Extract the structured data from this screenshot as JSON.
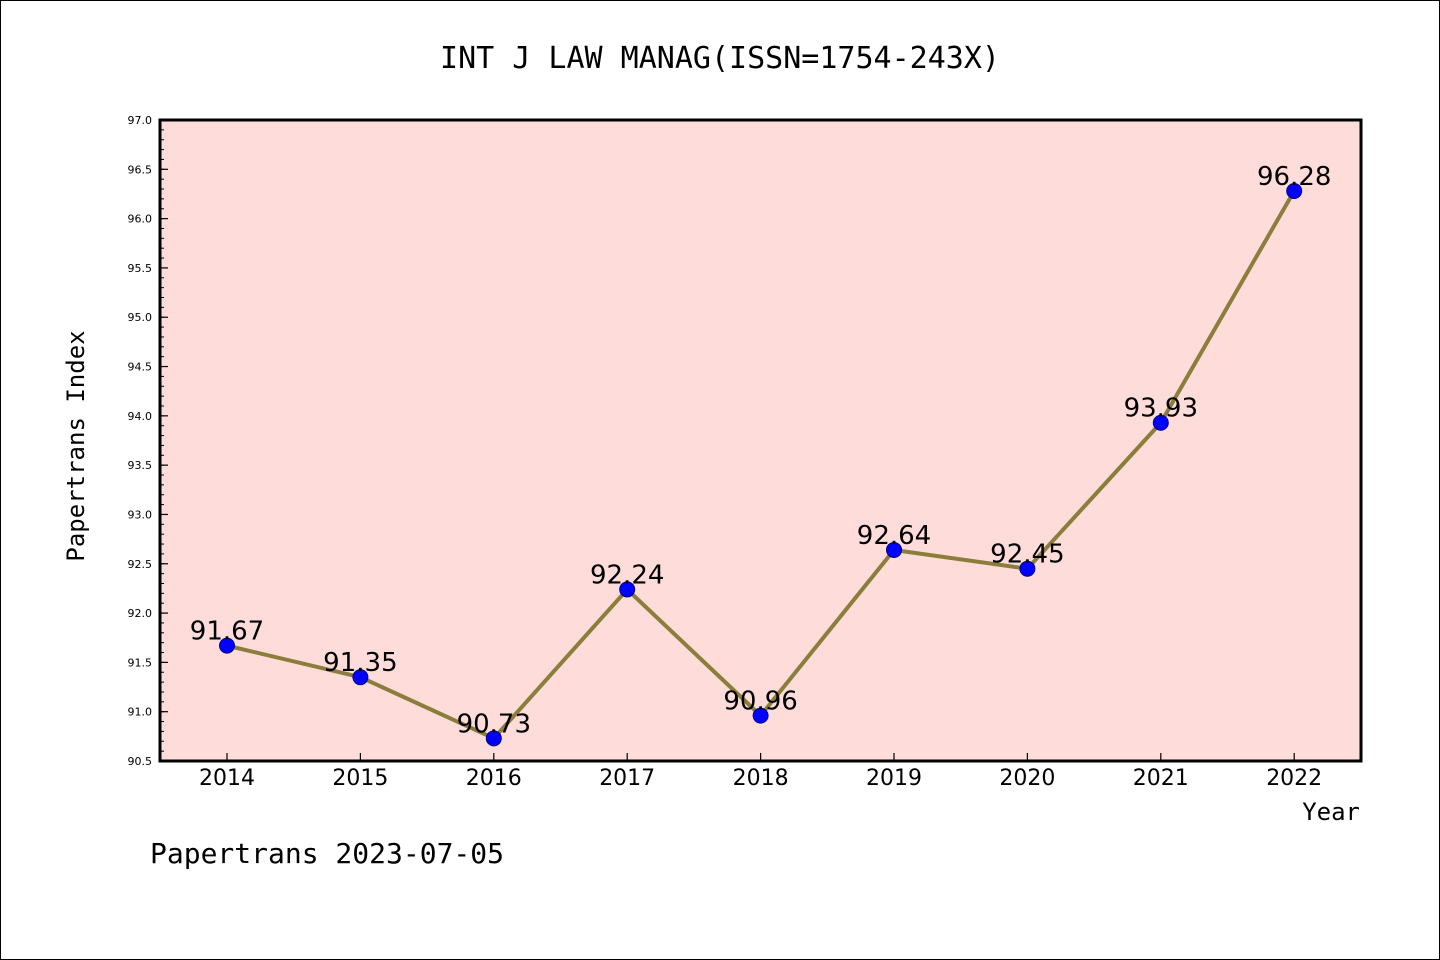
{
  "title": "INT J LAW MANAG(ISSN=1754-243X)",
  "footer": "Papertrans 2023-07-05",
  "colors": {
    "plot_background": "#fddcda",
    "line": "#8b7d3a",
    "marker": "#0000ff",
    "marker_edge": "#000080"
  },
  "chart_data": {
    "type": "line",
    "title": "INT J LAW MANAG(ISSN=1754-243X)",
    "xlabel": "Year",
    "ylabel": "Papertrans Index",
    "ylim": [
      90.5,
      97.0
    ],
    "yticks": [
      "90.5",
      "91.0",
      "91.5",
      "92.0",
      "92.5",
      "93.0",
      "93.5",
      "94.0",
      "94.5",
      "95.0",
      "95.5",
      "96.0",
      "96.5",
      "97.0"
    ],
    "categories": [
      "2014",
      "2015",
      "2016",
      "2017",
      "2018",
      "2019",
      "2020",
      "2021",
      "2022"
    ],
    "values": [
      91.67,
      91.35,
      90.73,
      92.24,
      90.96,
      92.64,
      92.45,
      93.93,
      96.28
    ],
    "data_labels": [
      "91.67",
      "91.35",
      "90.73",
      "92.24",
      "90.96",
      "92.64",
      "92.45",
      "93.93",
      "96.28"
    ],
    "grid": false,
    "legend": "none"
  }
}
